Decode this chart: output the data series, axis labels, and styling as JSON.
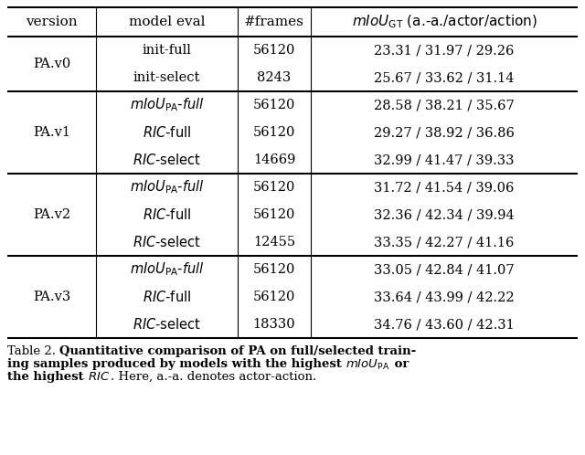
{
  "header": [
    "version",
    "model eval",
    "#frames",
    "mIoU_GT (a.-a./actor/action)"
  ],
  "rows": [
    [
      "PA.v0",
      "init-full",
      "56120",
      "23.31 / 31.97 / 29.26"
    ],
    [
      "PA.v0",
      "init-select",
      "8243",
      "25.67 / 33.62 / 31.14"
    ],
    [
      "PA.v1",
      "mIoU_PA-full",
      "56120",
      "28.58 / 38.21 / 35.67"
    ],
    [
      "PA.v1",
      "RIC-full",
      "56120",
      "29.27 / 38.92 / 36.86"
    ],
    [
      "PA.v1",
      "RIC-select",
      "14669",
      "32.99 / 41.47 / 39.33"
    ],
    [
      "PA.v2",
      "mIoU_PA-full",
      "56120",
      "31.72 / 41.54 / 39.06"
    ],
    [
      "PA.v2",
      "RIC-full",
      "56120",
      "32.36 / 42.34 / 39.94"
    ],
    [
      "PA.v2",
      "RIC-select",
      "12455",
      "33.35 / 42.27 / 41.16"
    ],
    [
      "PA.v3",
      "mIoU_PA-full",
      "56120",
      "33.05 / 42.84 / 41.07"
    ],
    [
      "PA.v3",
      "RIC-full",
      "56120",
      "33.64 / 43.99 / 42.22"
    ],
    [
      "PA.v3",
      "RIC-select",
      "18330",
      "34.76 / 43.60 / 42.31"
    ]
  ],
  "caption": "Table 2. Quantitative comparison of PA on full/selected training samples produced by models with the highest mIoU_PA or\nthe highest RIC. Here, a.-a. denotes actor-action.",
  "bg_color": "#ffffff",
  "text_color": "#000000",
  "line_color": "#000000"
}
